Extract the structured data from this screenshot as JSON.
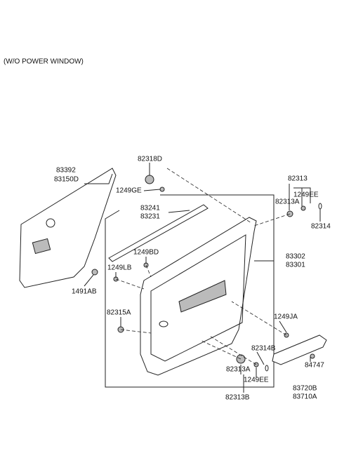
{
  "header": {
    "title": "(W/O POWER WINDOW)"
  },
  "labels": [
    {
      "text": "83392"
    },
    {
      "text": "83150D"
    },
    {
      "text": "82318D"
    },
    {
      "text": "1249GE"
    },
    {
      "text": "82313"
    },
    {
      "text": "1249EE"
    },
    {
      "text": "82313A"
    },
    {
      "text": "82314"
    },
    {
      "text": "83241"
    },
    {
      "text": "83231"
    },
    {
      "text": "1249BD"
    },
    {
      "text": "83302"
    },
    {
      "text": "83301"
    },
    {
      "text": "1249LB"
    },
    {
      "text": "1491AB"
    },
    {
      "text": "82315A"
    },
    {
      "text": "1249JA"
    },
    {
      "text": "82314B"
    },
    {
      "text": "84747"
    },
    {
      "text": "82313A"
    },
    {
      "text": "1249EE"
    },
    {
      "text": "83720B"
    },
    {
      "text": "83710A"
    },
    {
      "text": "82313B"
    }
  ]
}
